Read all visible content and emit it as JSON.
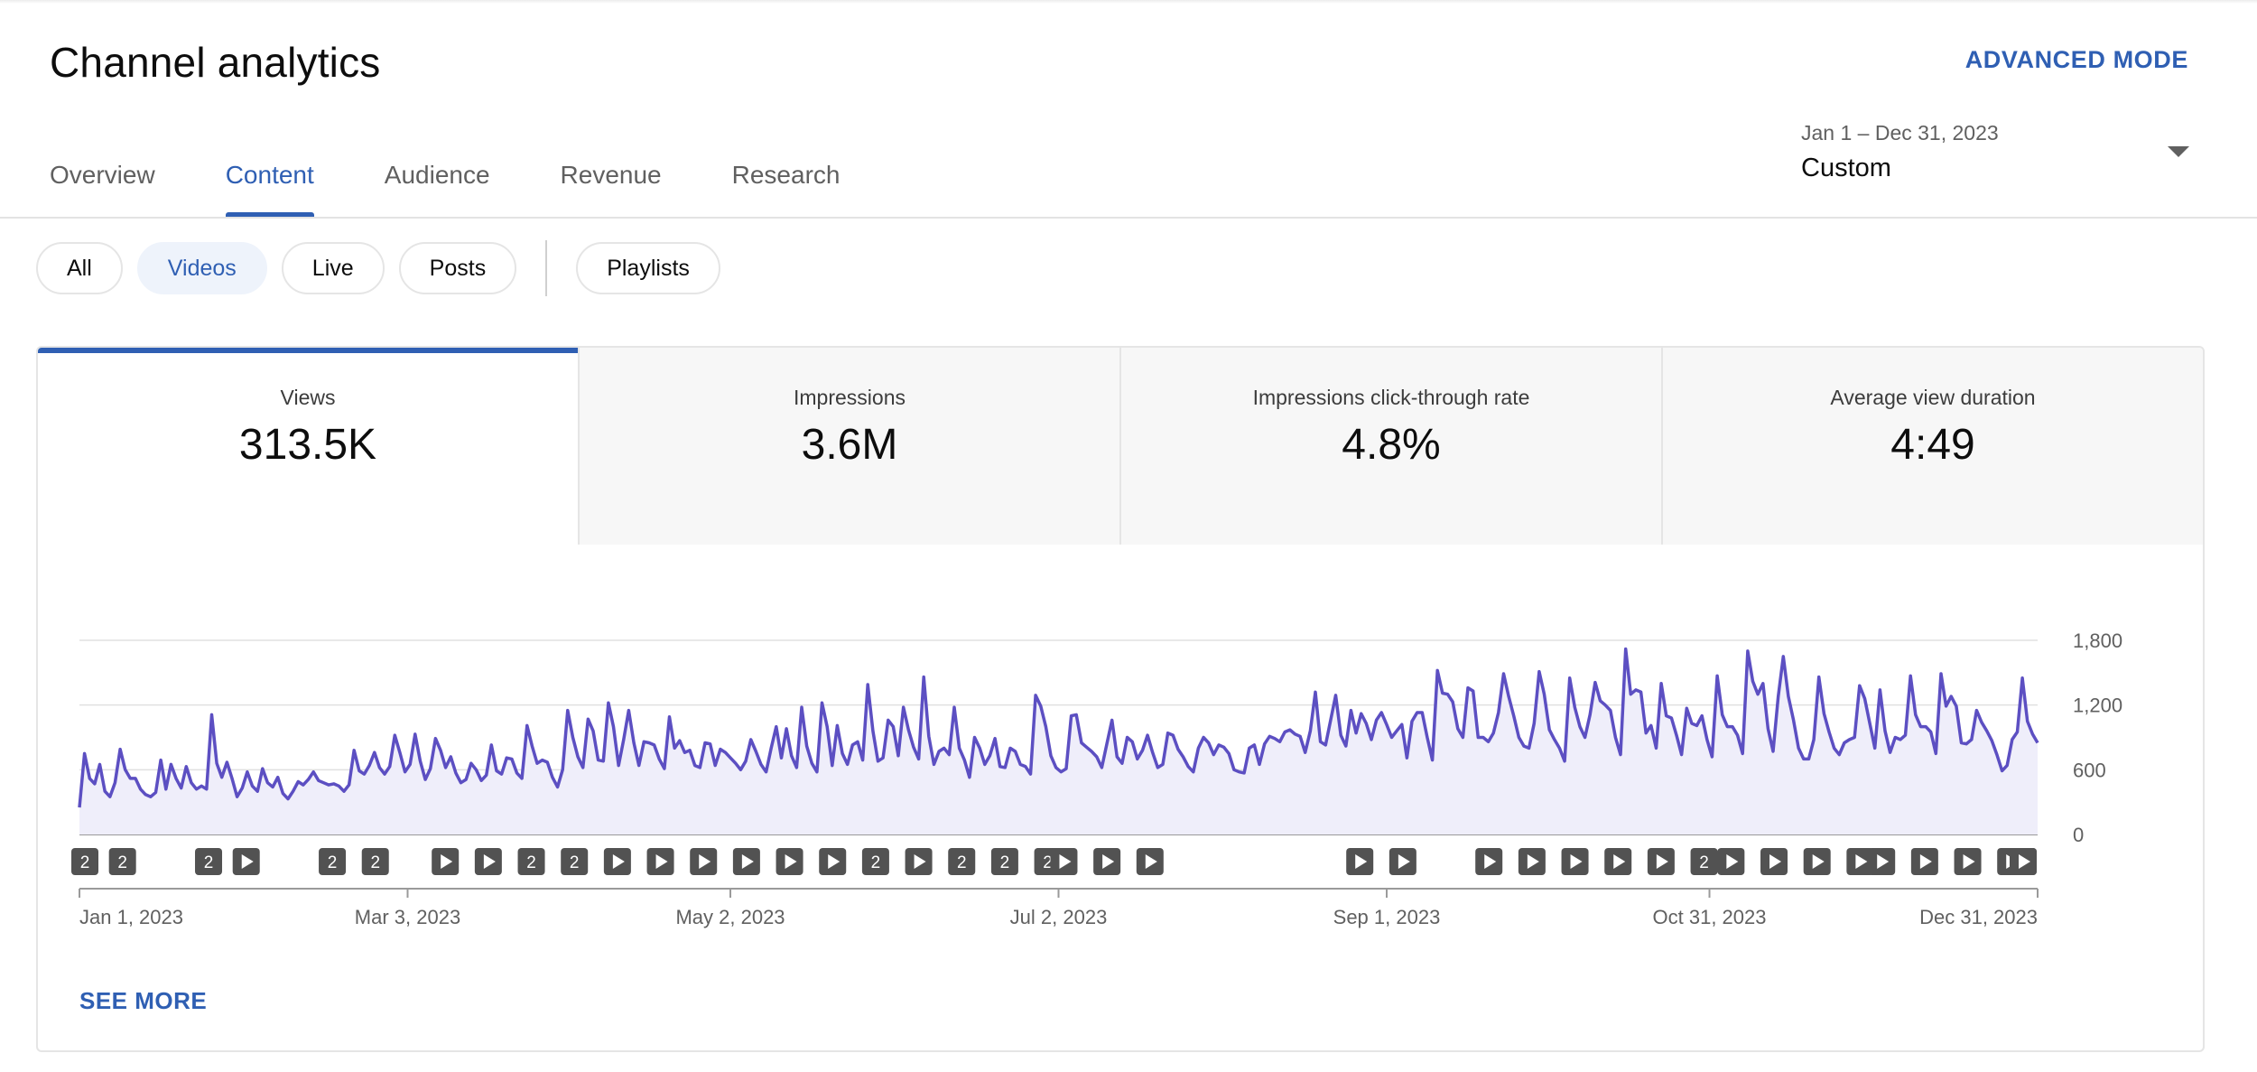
{
  "header": {
    "title": "Channel analytics",
    "advanced_mode": "ADVANCED MODE"
  },
  "tabs": [
    {
      "label": "Overview",
      "active": false
    },
    {
      "label": "Content",
      "active": true
    },
    {
      "label": "Audience",
      "active": false
    },
    {
      "label": "Revenue",
      "active": false
    },
    {
      "label": "Research",
      "active": false
    }
  ],
  "date_picker": {
    "range": "Jan 1 – Dec 31, 2023",
    "preset": "Custom",
    "icon": "caret-down-icon"
  },
  "filter_chips": [
    {
      "label": "All",
      "selected": false
    },
    {
      "label": "Videos",
      "selected": true
    },
    {
      "label": "Live",
      "selected": false
    },
    {
      "label": "Posts",
      "selected": false
    },
    {
      "label": "Playlists",
      "selected": false
    }
  ],
  "metrics": [
    {
      "label": "Views",
      "value": "313.5K",
      "active": true
    },
    {
      "label": "Impressions",
      "value": "3.6M",
      "active": false
    },
    {
      "label": "Impressions click-through rate",
      "value": "4.8%",
      "active": false
    },
    {
      "label": "Average view duration",
      "value": "4:49",
      "active": false
    }
  ],
  "see_more": "SEE MORE",
  "chart_data": {
    "type": "area",
    "series_color": "#5c4fc2",
    "fill_color": "#efeefa",
    "x_range": [
      "2023-01-01",
      "2023-12-31"
    ],
    "x_tick_labels": [
      "Jan 1, 2023",
      "Mar 3, 2023",
      "May 2, 2023",
      "Jul 2, 2023",
      "Sep 1, 2023",
      "Oct 31, 2023",
      "Dec 31, 2023"
    ],
    "y_ticks": [
      0,
      600,
      1200,
      1800
    ],
    "y_tick_labels": [
      "0",
      "600",
      "1,200",
      "1,800"
    ],
    "ylim": [
      0,
      1800
    ],
    "grid": true,
    "y_axis_side": "right",
    "series": [
      {
        "values": [
          250,
          750,
          520,
          470,
          650,
          400,
          350,
          480,
          790,
          600,
          520,
          520,
          420,
          370,
          350,
          390,
          690,
          420,
          650,
          520,
          430,
          630,
          480,
          420,
          450,
          420,
          1110,
          660,
          530,
          670,
          520,
          350,
          430,
          580,
          450,
          400,
          610,
          480,
          440,
          530,
          380,
          330,
          400,
          490,
          460,
          510,
          580,
          500,
          480,
          460,
          470,
          450,
          400,
          460,
          780,
          590,
          560,
          640,
          760,
          620,
          560,
          630,
          920,
          760,
          580,
          650,
          930,
          680,
          510,
          610,
          890,
          780,
          620,
          720,
          570,
          480,
          510,
          660,
          600,
          500,
          550,
          830,
          590,
          560,
          710,
          700,
          570,
          520,
          1010,
          820,
          660,
          690,
          670,
          530,
          440,
          600,
          1150,
          900,
          720,
          620,
          1070,
          960,
          690,
          680,
          1220,
          1000,
          640,
          880,
          1150,
          850,
          640,
          860,
          850,
          830,
          700,
          610,
          1090,
          800,
          870,
          760,
          780,
          640,
          620,
          850,
          840,
          640,
          790,
          760,
          710,
          660,
          600,
          680,
          880,
          770,
          650,
          580,
          800,
          1000,
          710,
          980,
          730,
          620,
          1180,
          820,
          660,
          580,
          1220,
          1000,
          640,
          1010,
          750,
          650,
          830,
          860,
          690,
          1390,
          960,
          680,
          710,
          1060,
          1000,
          730,
          1180,
          970,
          810,
          700,
          1460,
          910,
          650,
          770,
          800,
          740,
          1180,
          800,
          690,
          530,
          900,
          800,
          650,
          730,
          890,
          630,
          620,
          800,
          770,
          650,
          630,
          560,
          1290,
          1190,
          1000,
          730,
          620,
          580,
          610,
          1100,
          1110,
          850,
          810,
          770,
          720,
          620,
          840,
          1060,
          720,
          660,
          900,
          860,
          700,
          780,
          920,
          760,
          620,
          650,
          940,
          920,
          790,
          720,
          630,
          580,
          800,
          900,
          850,
          740,
          830,
          810,
          750,
          600,
          580,
          570,
          800,
          830,
          650,
          840,
          910,
          890,
          860,
          950,
          970,
          930,
          910,
          760,
          960,
          1320,
          860,
          830,
          1060,
          1290,
          920,
          820,
          1150,
          940,
          1120,
          1030,
          880,
          1060,
          1130,
          1020,
          900,
          960,
          1020,
          710,
          1050,
          1130,
          1130,
          900,
          690,
          1520,
          1310,
          1300,
          1230,
          980,
          900,
          1360,
          1330,
          900,
          900,
          860,
          940,
          1130,
          1490,
          1280,
          1100,
          900,
          820,
          800,
          1030,
          1510,
          1300,
          970,
          880,
          800,
          680,
          1450,
          1180,
          1000,
          900,
          1110,
          1410,
          1240,
          1200,
          1150,
          900,
          740,
          1720,
          1300,
          1340,
          1320,
          940,
          1010,
          800,
          1400,
          1100,
          1080,
          920,
          740,
          1170,
          1030,
          1010,
          1100,
          880,
          720,
          1470,
          1110,
          1000,
          1000,
          920,
          750,
          1700,
          1420,
          1300,
          1400,
          980,
          770,
          1280,
          1650,
          1280,
          1060,
          800,
          700,
          700,
          880,
          1460,
          1120,
          950,
          800,
          740,
          850,
          880,
          900,
          1380,
          1260,
          1030,
          800,
          1340,
          960,
          760,
          900,
          880,
          920,
          1470,
          1110,
          1000,
          1000,
          950,
          750,
          1490,
          1190,
          1280,
          1190,
          850,
          840,
          880,
          1150,
          1040,
          960,
          870,
          740,
          590,
          640,
          880,
          950,
          1450,
          1050,
          930,
          850
        ]
      }
    ],
    "event_markers": [
      {
        "date": "Jan 1, 2023",
        "type": "count",
        "label": "2"
      },
      {
        "date": "Jan 9, 2023",
        "type": "count",
        "label": "2"
      },
      {
        "date": "Jan 25, 2023",
        "type": "count",
        "label": "2"
      },
      {
        "date": "Feb 1, 2023",
        "type": "publish"
      },
      {
        "date": "Feb 17, 2023",
        "type": "count",
        "label": "2"
      },
      {
        "date": "Feb 25, 2023",
        "type": "count",
        "label": "2"
      },
      {
        "date": "Mar 10, 2023",
        "type": "publish"
      },
      {
        "date": "Mar 18, 2023",
        "type": "publish"
      },
      {
        "date": "Mar 26, 2023",
        "type": "count",
        "label": "2"
      },
      {
        "date": "Apr 3, 2023",
        "type": "count",
        "label": "2"
      },
      {
        "date": "Apr 11, 2023",
        "type": "publish"
      },
      {
        "date": "Apr 19, 2023",
        "type": "publish"
      },
      {
        "date": "Apr 27, 2023",
        "type": "publish"
      },
      {
        "date": "May 5, 2023",
        "type": "publish"
      },
      {
        "date": "May 13, 2023",
        "type": "publish"
      },
      {
        "date": "May 21, 2023",
        "type": "publish"
      },
      {
        "date": "May 29, 2023",
        "type": "count",
        "label": "2"
      },
      {
        "date": "Jun 6, 2023",
        "type": "publish"
      },
      {
        "date": "Jun 14, 2023",
        "type": "count",
        "label": "2"
      },
      {
        "date": "Jun 22, 2023",
        "type": "count",
        "label": "2"
      },
      {
        "date": "Jun 30, 2023",
        "type": "count",
        "label": "2"
      },
      {
        "date": "Jul 3, 2023",
        "type": "publish"
      },
      {
        "date": "Jul 11, 2023",
        "type": "publish"
      },
      {
        "date": "Jul 19, 2023",
        "type": "publish"
      },
      {
        "date": "Aug 27, 2023",
        "type": "publish"
      },
      {
        "date": "Sep 4, 2023",
        "type": "publish"
      },
      {
        "date": "Sep 20, 2023",
        "type": "publish"
      },
      {
        "date": "Sep 28, 2023",
        "type": "publish"
      },
      {
        "date": "Oct 6, 2023",
        "type": "publish"
      },
      {
        "date": "Oct 14, 2023",
        "type": "publish"
      },
      {
        "date": "Oct 22, 2023",
        "type": "publish"
      },
      {
        "date": "Oct 30, 2023",
        "type": "count",
        "label": "2"
      },
      {
        "date": "Nov 4, 2023",
        "type": "publish"
      },
      {
        "date": "Nov 12, 2023",
        "type": "publish"
      },
      {
        "date": "Nov 20, 2023",
        "type": "publish"
      },
      {
        "date": "Nov 28, 2023",
        "type": "publish"
      },
      {
        "date": "Dec 2, 2023",
        "type": "publish"
      },
      {
        "date": "Dec 10, 2023",
        "type": "publish"
      },
      {
        "date": "Dec 18, 2023",
        "type": "publish"
      },
      {
        "date": "Dec 26, 2023",
        "type": "publish"
      },
      {
        "date": "Dec 30, 2023",
        "type": "publish"
      },
      {
        "date": "Dec 31, 2023",
        "type": "publish"
      }
    ]
  }
}
